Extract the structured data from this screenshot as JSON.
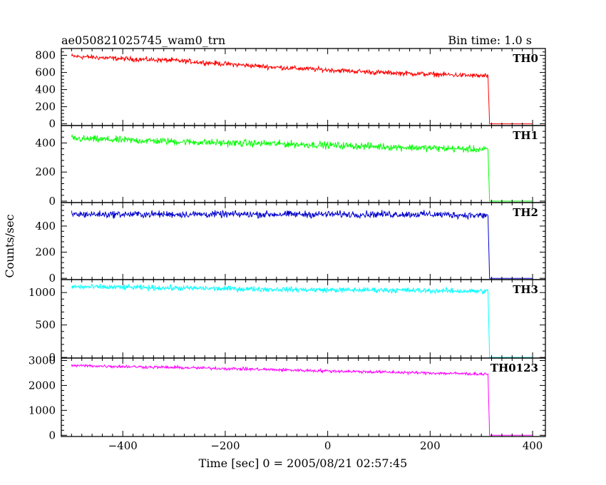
{
  "header": {
    "title": "ae050821025745_wam0_trn",
    "bin_time": "Bin time: 1.0 s"
  },
  "chart_data": {
    "type": "line",
    "title": "ae050821025745_wam0_trn",
    "xlabel": "Time [sec] 0 = 2005/08/21 02:57:45",
    "ylabel": "Counts/sec",
    "xlim": [
      -520,
      425
    ],
    "xticks": [
      -400,
      -200,
      0,
      200,
      400
    ],
    "xtick_labels": [
      "−400",
      "−200",
      "0",
      "200",
      "400"
    ],
    "grid": false,
    "panels": [
      {
        "name": "TH0",
        "color": "#ff0000",
        "ylim": [
          -20,
          880
        ],
        "yticks": [
          0,
          200,
          400,
          600,
          800
        ],
        "x": [
          -500,
          -400,
          -300,
          -200,
          -100,
          0,
          100,
          200,
          300,
          313,
          316,
          400
        ],
        "y": [
          790,
          760,
          740,
          700,
          660,
          630,
          600,
          580,
          560,
          560,
          0,
          0
        ],
        "noise": 28
      },
      {
        "name": "TH1",
        "color": "#00ff00",
        "ylim": [
          -10,
          520
        ],
        "yticks": [
          0,
          200,
          400
        ],
        "x": [
          -500,
          -400,
          -300,
          -200,
          -100,
          0,
          100,
          200,
          300,
          313,
          316,
          400
        ],
        "y": [
          430,
          420,
          410,
          400,
          395,
          385,
          375,
          365,
          355,
          355,
          0,
          0
        ],
        "noise": 24
      },
      {
        "name": "TH2",
        "color": "#0000cc",
        "ylim": [
          -10,
          580
        ],
        "yticks": [
          0,
          200,
          400
        ],
        "x": [
          -500,
          -400,
          -300,
          -200,
          -100,
          0,
          100,
          200,
          300,
          313,
          316,
          400
        ],
        "y": [
          490,
          490,
          490,
          490,
          490,
          490,
          490,
          490,
          480,
          480,
          0,
          0
        ],
        "noise": 26
      },
      {
        "name": "TH3",
        "color": "#00ffff",
        "ylim": [
          -10,
          1200
        ],
        "yticks": [
          0,
          500,
          1000
        ],
        "x": [
          -500,
          -400,
          -300,
          -200,
          -100,
          0,
          100,
          200,
          300,
          313,
          316,
          400
        ],
        "y": [
          1090,
          1080,
          1070,
          1060,
          1050,
          1040,
          1040,
          1030,
          1020,
          1020,
          0,
          0
        ],
        "noise": 40
      },
      {
        "name": "TH0123",
        "color": "#ff00ff",
        "ylim": [
          -50,
          3100
        ],
        "yticks": [
          0,
          1000,
          2000,
          3000
        ],
        "x": [
          -500,
          -400,
          -300,
          -200,
          -100,
          0,
          100,
          200,
          300,
          313,
          316,
          400
        ],
        "y": [
          2800,
          2760,
          2720,
          2680,
          2630,
          2580,
          2540,
          2500,
          2460,
          2460,
          0,
          0
        ],
        "noise": 60
      }
    ]
  }
}
